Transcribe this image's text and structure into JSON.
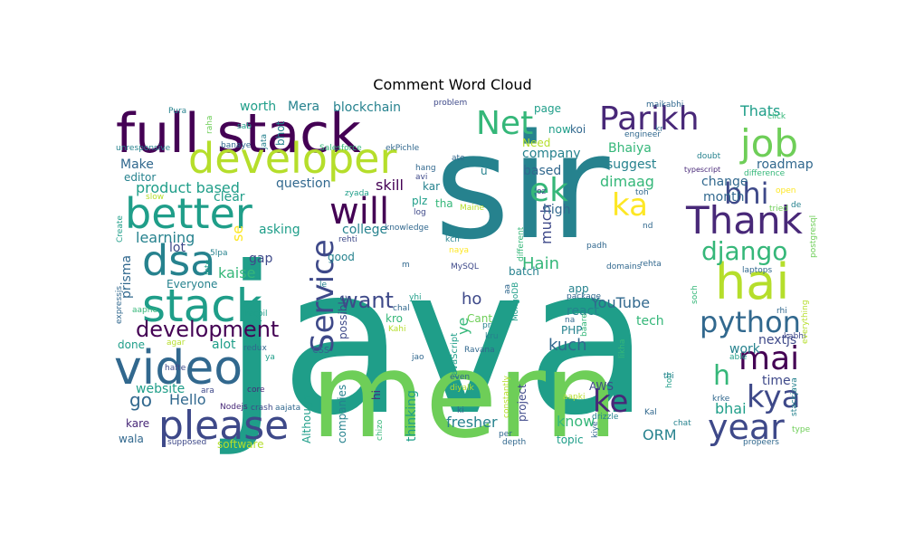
{
  "chart_data": {
    "type": "wordcloud",
    "title": "Comment Word Cloud",
    "background": "#ffffff",
    "colormap": "viridis",
    "words": [
      {
        "text": "java",
        "weight": 100
      },
      {
        "text": "sir",
        "weight": 82
      },
      {
        "text": "mern",
        "weight": 78
      },
      {
        "text": "full stack",
        "weight": 44
      },
      {
        "text": "video",
        "weight": 40
      },
      {
        "text": "developer",
        "weight": 38
      },
      {
        "text": "please",
        "weight": 36
      },
      {
        "text": "better",
        "weight": 34
      },
      {
        "text": "stack",
        "weight": 34
      },
      {
        "text": "dsa",
        "weight": 33
      },
      {
        "text": "hai",
        "weight": 32
      },
      {
        "text": "Thank",
        "weight": 30
      },
      {
        "text": "job",
        "weight": 30
      },
      {
        "text": "Service",
        "weight": 29
      },
      {
        "text": "will",
        "weight": 28
      },
      {
        "text": "Net",
        "weight": 27
      },
      {
        "text": "ek",
        "weight": 27
      },
      {
        "text": "Parikh",
        "weight": 26
      },
      {
        "text": "python",
        "weight": 25
      },
      {
        "text": "mai",
        "weight": 25
      },
      {
        "text": "kya",
        "weight": 24
      },
      {
        "text": "year",
        "weight": 24
      },
      {
        "text": "ke",
        "weight": 23
      },
      {
        "text": "ka",
        "weight": 23
      },
      {
        "text": "h",
        "weight": 22
      },
      {
        "text": "bhi",
        "weight": 22
      },
      {
        "text": "django",
        "weight": 21
      },
      {
        "text": "development",
        "weight": 20
      },
      {
        "text": "want",
        "weight": 19
      },
      {
        "text": "go",
        "weight": 16
      },
      {
        "text": "Hain",
        "weight": 15
      },
      {
        "text": "YouTube",
        "weight": 14
      },
      {
        "text": "fresher",
        "weight": 14
      },
      {
        "text": "kuch",
        "weight": 14
      },
      {
        "text": "ho",
        "weight": 14
      },
      {
        "text": "product based",
        "weight": 14
      },
      {
        "text": "Hello",
        "weight": 13
      },
      {
        "text": "dimaag",
        "weight": 13
      },
      {
        "text": "Thats",
        "weight": 13
      },
      {
        "text": "learning",
        "weight": 13
      },
      {
        "text": "much",
        "weight": 12
      },
      {
        "text": "skill",
        "weight": 12
      },
      {
        "text": "ye",
        "weight": 12
      },
      {
        "text": "se",
        "weight": 12
      },
      {
        "text": "kaise",
        "weight": 12
      },
      {
        "text": "know",
        "weight": 12
      },
      {
        "text": "ORM",
        "weight": 12
      },
      {
        "text": "bhai",
        "weight": 12
      },
      {
        "text": "tech",
        "weight": 11
      },
      {
        "text": "thinking",
        "weight": 11
      },
      {
        "text": "website",
        "weight": 11
      },
      {
        "text": "Make",
        "weight": 11
      },
      {
        "text": "blockchain",
        "weight": 11
      },
      {
        "text": "company",
        "weight": 11
      },
      {
        "text": "based",
        "weight": 11
      },
      {
        "text": "suggest",
        "weight": 11
      },
      {
        "text": "Bhaiya",
        "weight": 11
      },
      {
        "text": "roadmap",
        "weight": 11
      },
      {
        "text": "change",
        "weight": 11
      },
      {
        "text": "month",
        "weight": 11
      },
      {
        "text": "high",
        "weight": 11
      },
      {
        "text": "react",
        "weight": 11
      },
      {
        "text": "time",
        "weight": 11
      },
      {
        "text": "nextjs",
        "weight": 11
      },
      {
        "text": "work",
        "weight": 11
      },
      {
        "text": "AWS",
        "weight": 10
      },
      {
        "text": "PHP",
        "weight": 10
      },
      {
        "text": "app",
        "weight": 10
      },
      {
        "text": "now",
        "weight": 10
      },
      {
        "text": "koi",
        "weight": 10
      },
      {
        "text": "page",
        "weight": 10
      },
      {
        "text": "Need",
        "weight": 10
      },
      {
        "text": "u",
        "weight": 10
      },
      {
        "text": "batch",
        "weight": 10
      },
      {
        "text": "project",
        "weight": 10
      },
      {
        "text": "topic",
        "weight": 10
      },
      {
        "text": "worth",
        "weight": 10
      },
      {
        "text": "Mera",
        "weight": 10
      },
      {
        "text": "bhot",
        "weight": 10
      },
      {
        "text": "editor",
        "weight": 10
      },
      {
        "text": "clear",
        "weight": 10
      },
      {
        "text": "question",
        "weight": 10
      },
      {
        "text": "asking",
        "weight": 10
      },
      {
        "text": "college",
        "weight": 10
      },
      {
        "text": "gap",
        "weight": 10
      },
      {
        "text": "lot",
        "weight": 10
      },
      {
        "text": "Everyone",
        "weight": 10
      },
      {
        "text": "alot",
        "weight": 10
      },
      {
        "text": "done",
        "weight": 10
      },
      {
        "text": "prisma",
        "weight": 10
      },
      {
        "text": "good",
        "weight": 10
      },
      {
        "text": "possible",
        "weight": 10
      },
      {
        "text": "kar",
        "weight": 10
      },
      {
        "text": "plz",
        "weight": 10
      },
      {
        "text": "tha",
        "weight": 10
      },
      {
        "text": "Cant",
        "weight": 10
      },
      {
        "text": "kro",
        "weight": 10
      },
      {
        "text": "css",
        "weight": 10
      },
      {
        "text": "hi",
        "weight": 10
      },
      {
        "text": "companies",
        "weight": 10
      },
      {
        "text": "Although",
        "weight": 10
      },
      {
        "text": "kare",
        "weight": 10
      },
      {
        "text": "wala",
        "weight": 10
      },
      {
        "text": "software",
        "weight": 10
      },
      {
        "text": "JavaScript",
        "weight": 9
      },
      {
        "text": "MySQL",
        "weight": 9
      },
      {
        "text": "Nodejs",
        "weight": 9
      },
      {
        "text": "crash",
        "weight": 9
      },
      {
        "text": "aajata",
        "weight": 9
      },
      {
        "text": "supposed",
        "weight": 9
      },
      {
        "text": "ara",
        "weight": 9
      },
      {
        "text": "redux",
        "weight": 9
      },
      {
        "text": "recoil",
        "weight": 9
      },
      {
        "text": "zyada",
        "weight": 9
      },
      {
        "text": "rehti",
        "weight": 9
      },
      {
        "text": "log",
        "weight": 9
      },
      {
        "text": "knowledge",
        "weight": 9
      },
      {
        "text": "hang",
        "weight": 9
      },
      {
        "text": "avi",
        "weight": 9
      },
      {
        "text": "ate",
        "weight": 9
      },
      {
        "text": "kch",
        "weight": 9
      },
      {
        "text": "naya",
        "weight": 9
      },
      {
        "text": "yhi",
        "weight": 9
      },
      {
        "text": "m",
        "weight": 9
      },
      {
        "text": "le",
        "weight": 9
      },
      {
        "text": "chal",
        "weight": 9
      },
      {
        "text": "Kahi",
        "weight": 9
      },
      {
        "text": "jao",
        "weight": 9
      },
      {
        "text": "Ravana",
        "weight": 9
      },
      {
        "text": "kru",
        "weight": 9
      },
      {
        "text": "pr",
        "weight": 9
      },
      {
        "text": "even",
        "weight": 9
      },
      {
        "text": "diyalk",
        "weight": 9
      },
      {
        "text": "ki",
        "weight": 9
      },
      {
        "text": "chizo",
        "weight": 9
      },
      {
        "text": "per",
        "weight": 9
      },
      {
        "text": "depth",
        "weight": 9
      },
      {
        "text": "constantly",
        "weight": 9
      },
      {
        "text": "different",
        "weight": 9
      },
      {
        "text": "MongoDB",
        "weight": 9
      },
      {
        "text": "aa",
        "weight": 9
      },
      {
        "text": "Maine",
        "weight": 9
      },
      {
        "text": "oz",
        "weight": 9
      },
      {
        "text": "padh",
        "weight": 9
      },
      {
        "text": "rehta",
        "weight": 9
      },
      {
        "text": "domains",
        "weight": 9
      },
      {
        "text": "package",
        "weight": 9
      },
      {
        "text": "na",
        "weight": 9
      },
      {
        "text": "baare",
        "weight": 9
      },
      {
        "text": "likha",
        "weight": 9
      },
      {
        "text": "aapki",
        "weight": 9
      },
      {
        "text": "drizzle",
        "weight": 9
      },
      {
        "text": "kiye",
        "weight": 9
      },
      {
        "text": "Kal",
        "weight": 9
      },
      {
        "text": "chat",
        "weight": 9
      },
      {
        "text": "hoti",
        "weight": 9
      },
      {
        "text": "thi",
        "weight": 9
      },
      {
        "text": "krke",
        "weight": 9
      },
      {
        "text": "soch",
        "weight": 9
      },
      {
        "text": "able",
        "weight": 9
      },
      {
        "text": "laptops",
        "weight": 9
      },
      {
        "text": "rhi",
        "weight": 9
      },
      {
        "text": "kabhi",
        "weight": 9
      },
      {
        "text": "stackjava",
        "weight": 9
      },
      {
        "text": "propeers",
        "weight": 9
      },
      {
        "text": "type",
        "weight": 9
      },
      {
        "text": "everything",
        "weight": 9
      },
      {
        "text": "postgresql",
        "weight": 9
      },
      {
        "text": "de",
        "weight": 9
      },
      {
        "text": "tried",
        "weight": 9
      },
      {
        "text": "open",
        "weight": 9
      },
      {
        "text": "toh",
        "weight": 9
      },
      {
        "text": "nd",
        "weight": 9
      },
      {
        "text": "doubt",
        "weight": 9
      },
      {
        "text": "typescript",
        "weight": 9
      },
      {
        "text": "difference",
        "weight": 9
      },
      {
        "text": "engineer",
        "weight": 9
      },
      {
        "text": "kr",
        "weight": 9
      },
      {
        "text": "maikabhi",
        "weight": 9
      },
      {
        "text": "click",
        "weight": 9
      },
      {
        "text": "problem",
        "weight": 9
      },
      {
        "text": "ekPichle",
        "weight": 9
      },
      {
        "text": "Salesforce",
        "weight": 9
      },
      {
        "text": "banaye",
        "weight": 9
      },
      {
        "text": "jata",
        "weight": 9
      },
      {
        "text": "unresponsive",
        "weight": 9
      },
      {
        "text": "sab",
        "weight": 9
      },
      {
        "text": "raha",
        "weight": 9
      },
      {
        "text": "Pura",
        "weight": 9
      },
      {
        "text": "slow",
        "weight": 9
      },
      {
        "text": "Create",
        "weight": 9
      },
      {
        "text": "expressjs",
        "weight": 9
      },
      {
        "text": "aapne",
        "weight": 9
      },
      {
        "text": "hafte",
        "weight": 9
      },
      {
        "text": "agar",
        "weight": 9
      },
      {
        "text": "ya",
        "weight": 9
      },
      {
        "text": "lete",
        "weight": 9
      },
      {
        "text": "5lpa",
        "weight": 9
      },
      {
        "text": "core",
        "weight": 9
      }
    ]
  }
}
